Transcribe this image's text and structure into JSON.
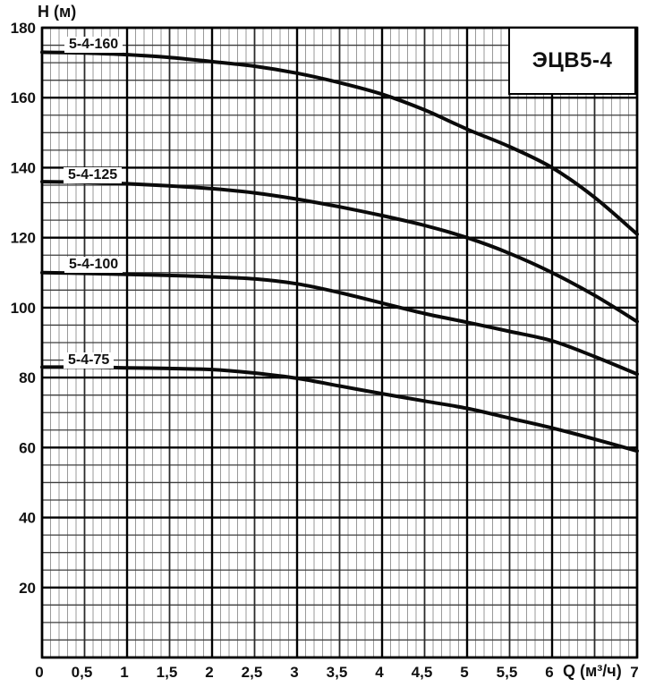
{
  "page": {
    "background": "#ffffff",
    "model_badge": "ЭЦВ5-4"
  },
  "palette": {
    "curve_color": "#0a0a0a",
    "text_color": "#111111",
    "grid_minor_v": "#9a9a9a",
    "grid_mid_v": "#2b2b2b",
    "grid_major": "#000000",
    "grid_minor_h": "#3d3d3d",
    "border_color": "#000000"
  },
  "chart_data": {
    "type": "line",
    "title": "ЭЦВ5-4",
    "xlabel": "Q (м³/ч)",
    "ylabel": "H (м)",
    "xlim": [
      0,
      7
    ],
    "ylim": [
      0,
      180
    ],
    "grid": "on",
    "x_major_step": 1,
    "x_mid_step": 0.5,
    "x_minor_step": 0.1,
    "y_major_step": 20,
    "y_minor_step": 5,
    "x_tick_labels": [
      {
        "value": 0,
        "label": "0"
      },
      {
        "value": 0.5,
        "label": "0,5"
      },
      {
        "value": 1,
        "label": "1"
      },
      {
        "value": 1.5,
        "label": "1,5"
      },
      {
        "value": 2,
        "label": "2"
      },
      {
        "value": 2.5,
        "label": "2,5"
      },
      {
        "value": 3,
        "label": "3"
      },
      {
        "value": 3.5,
        "label": "3,5"
      },
      {
        "value": 4,
        "label": "4"
      },
      {
        "value": 4.5,
        "label": "4,5"
      },
      {
        "value": 5,
        "label": "5"
      },
      {
        "value": 5.5,
        "label": "5,5"
      },
      {
        "value": 6,
        "label": "6"
      },
      {
        "value": 7,
        "label": "7"
      }
    ],
    "y_tick_labels": [
      {
        "value": 20,
        "label": "20"
      },
      {
        "value": 40,
        "label": "40"
      },
      {
        "value": 60,
        "label": "60"
      },
      {
        "value": 80,
        "label": "80"
      },
      {
        "value": 100,
        "label": "100"
      },
      {
        "value": 120,
        "label": "120"
      },
      {
        "value": 140,
        "label": "140"
      },
      {
        "value": 160,
        "label": "160"
      },
      {
        "value": 180,
        "label": "180"
      }
    ],
    "x": [
      0,
      0.5,
      1,
      1.5,
      2,
      2.5,
      3,
      3.5,
      4,
      4.5,
      5,
      5.5,
      6,
      6.5,
      7
    ],
    "series": [
      {
        "name": "5-4-160",
        "values": [
          173,
          172.8,
          172.3,
          171.5,
          170.3,
          169,
          167,
          164.3,
          161,
          156.5,
          151,
          146,
          140,
          131.5,
          121
        ]
      },
      {
        "name": "5-4-125",
        "values": [
          136,
          135.8,
          135.4,
          134.8,
          134,
          132.8,
          131,
          128.8,
          126.3,
          123.5,
          120,
          115.5,
          110,
          103.5,
          96
        ]
      },
      {
        "name": "5-4-100",
        "values": [
          110,
          109.8,
          109.5,
          109.2,
          108.8,
          108.2,
          106.8,
          104.3,
          101.3,
          98.3,
          95.8,
          93.2,
          90.5,
          86,
          81
        ]
      },
      {
        "name": "5-4-75",
        "values": [
          83,
          83,
          82.8,
          82.6,
          82.3,
          81.3,
          79.8,
          77.6,
          75.4,
          73.3,
          71.2,
          68.4,
          65.6,
          62.4,
          59
        ]
      }
    ]
  }
}
